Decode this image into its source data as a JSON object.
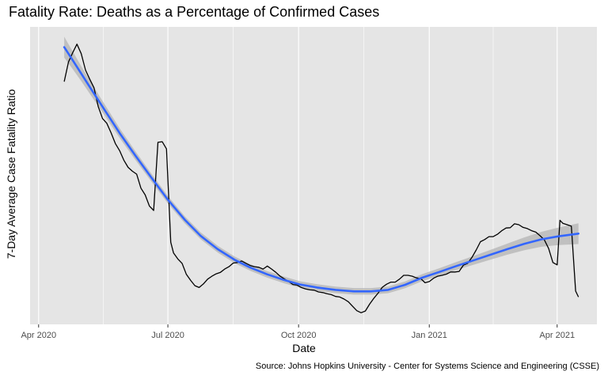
{
  "chart_data": {
    "type": "line",
    "title": "Fatality Rate:  Deaths as a Percentage of Confirmed Cases",
    "xlabel": "Date",
    "ylabel": "7-Day Average Case Fatality Ratio",
    "caption": "Source:  Johns Hopkins University - Center for Systems Science and Engineering (CSSE)",
    "x_ticks": [
      "Apr 2020",
      "Jul 2020",
      "Oct 2020",
      "Jan 2021",
      "Apr 2021"
    ],
    "x_tick_dates": [
      "2020-04-01",
      "2020-07-01",
      "2020-10-01",
      "2021-01-01",
      "2021-04-01"
    ],
    "xlim": [
      "2020-03-26",
      "2021-04-29"
    ],
    "ylim": [
      0,
      100
    ],
    "y_ticks_shown": false,
    "grid": true,
    "legend": "none",
    "colors": {
      "raw_line": "#000000",
      "smooth_line": "#3366ff",
      "confidence_band": "#b3b3b3",
      "panel_background": "#e5e5e5",
      "grid": "#ffffff"
    },
    "series": [
      {
        "style": "raw",
        "x": [
          "2020-04-19",
          "2020-04-22",
          "2020-04-25",
          "2020-04-28",
          "2020-05-01",
          "2020-05-04",
          "2020-05-07",
          "2020-05-10",
          "2020-05-13",
          "2020-05-16",
          "2020-05-19",
          "2020-05-22",
          "2020-05-25",
          "2020-05-28",
          "2020-05-31",
          "2020-06-03",
          "2020-06-06",
          "2020-06-09",
          "2020-06-12",
          "2020-06-15",
          "2020-06-18",
          "2020-06-21",
          "2020-06-24",
          "2020-06-27",
          "2020-06-30",
          "2020-07-03",
          "2020-07-05",
          "2020-07-08",
          "2020-07-11",
          "2020-07-14",
          "2020-07-17",
          "2020-07-20",
          "2020-07-23",
          "2020-07-26",
          "2020-07-29",
          "2020-08-01",
          "2020-08-04",
          "2020-08-07",
          "2020-08-10",
          "2020-08-13",
          "2020-08-16",
          "2020-08-19",
          "2020-08-22",
          "2020-08-25",
          "2020-08-28",
          "2020-08-31",
          "2020-09-03",
          "2020-09-06",
          "2020-09-09",
          "2020-09-12",
          "2020-09-15",
          "2020-09-18",
          "2020-09-21",
          "2020-09-24",
          "2020-09-27",
          "2020-09-30",
          "2020-10-03",
          "2020-10-06",
          "2020-10-09",
          "2020-10-12",
          "2020-10-15",
          "2020-10-18",
          "2020-10-21",
          "2020-10-24",
          "2020-10-27",
          "2020-10-30",
          "2020-11-02",
          "2020-11-05",
          "2020-11-08",
          "2020-11-11",
          "2020-11-14",
          "2020-11-17",
          "2020-11-20",
          "2020-11-23",
          "2020-11-26",
          "2020-11-29",
          "2020-12-02",
          "2020-12-05",
          "2020-12-08",
          "2020-12-11",
          "2020-12-14",
          "2020-12-17",
          "2020-12-20",
          "2020-12-23",
          "2020-12-26",
          "2020-12-29",
          "2021-01-01",
          "2021-01-04",
          "2021-01-07",
          "2021-01-10",
          "2021-01-13",
          "2021-01-16",
          "2021-01-19",
          "2021-01-22",
          "2021-01-25",
          "2021-01-28",
          "2021-01-31",
          "2021-02-03",
          "2021-02-06",
          "2021-02-09",
          "2021-02-12",
          "2021-02-15",
          "2021-02-18",
          "2021-02-21",
          "2021-02-24",
          "2021-02-27",
          "2021-03-02",
          "2021-03-05",
          "2021-03-08",
          "2021-03-11",
          "2021-03-14",
          "2021-03-17",
          "2021-03-20",
          "2021-03-23",
          "2021-03-26",
          "2021-03-29",
          "2021-04-01",
          "2021-04-03",
          "2021-04-05",
          "2021-04-08",
          "2021-04-11",
          "2021-04-14",
          "2021-04-16"
        ],
        "y": [
          81.6,
          88.2,
          91.3,
          94.2,
          91.0,
          85.5,
          82.4,
          79.5,
          73.2,
          69.2,
          67.6,
          64.4,
          60.8,
          58.4,
          55.2,
          52.8,
          51.5,
          50.5,
          45.8,
          43.5,
          39.8,
          38.3,
          61.2,
          61.4,
          59.0,
          27.6,
          24.0,
          22.0,
          20.5,
          16.8,
          14.8,
          13.0,
          12.4,
          13.6,
          15.2,
          16.2,
          17.0,
          17.5,
          18.6,
          19.4,
          20.6,
          20.8,
          21.3,
          20.5,
          19.8,
          19.4,
          19.2,
          18.6,
          19.6,
          18.6,
          17.5,
          16.2,
          15.3,
          14.4,
          13.4,
          13.2,
          12.4,
          11.9,
          11.6,
          11.5,
          10.9,
          10.7,
          10.3,
          10.0,
          9.4,
          9.2,
          8.5,
          7.6,
          6.1,
          4.6,
          3.9,
          4.5,
          6.8,
          8.8,
          10.5,
          12.5,
          13.5,
          14.2,
          14.2,
          15.2,
          16.5,
          16.5,
          16.2,
          15.6,
          15.4,
          14.0,
          14.4,
          15.5,
          16.2,
          16.5,
          16.9,
          17.6,
          17.6,
          17.8,
          19.9,
          20.5,
          22.5,
          25.0,
          27.8,
          28.5,
          29.5,
          29.5,
          30.3,
          31.5,
          32.4,
          32.5,
          33.8,
          33.5,
          32.6,
          32.2,
          31.5,
          31.0,
          29.8,
          28.4,
          25.5,
          20.8,
          20.0,
          35.0,
          34.0,
          33.5,
          33.0,
          11.2,
          9.2
        ]
      },
      {
        "style": "smooth",
        "x": [
          "2020-04-19",
          "2020-04-25",
          "2020-05-01",
          "2020-05-09",
          "2020-05-18",
          "2020-05-28",
          "2020-06-08",
          "2020-06-19",
          "2020-07-01",
          "2020-07-13",
          "2020-07-24",
          "2020-08-05",
          "2020-08-17",
          "2020-08-28",
          "2020-09-09",
          "2020-09-21",
          "2020-10-02",
          "2020-10-14",
          "2020-10-27",
          "2020-11-09",
          "2020-11-21",
          "2020-12-03",
          "2020-12-15",
          "2020-12-27",
          "2021-01-08",
          "2021-01-20",
          "2021-02-01",
          "2021-02-13",
          "2021-02-25",
          "2021-03-09",
          "2021-03-21",
          "2021-04-02",
          "2021-04-16"
        ],
        "y": [
          93.2,
          88.8,
          84.3,
          78.3,
          71.7,
          64.3,
          56.8,
          49.6,
          41.9,
          35.1,
          29.8,
          25.3,
          21.7,
          19.1,
          16.8,
          14.9,
          13.4,
          12.4,
          11.6,
          11.1,
          11.1,
          11.6,
          13.3,
          15.7,
          17.6,
          19.6,
          21.5,
          23.4,
          25.3,
          27.1,
          28.6,
          29.6,
          30.5
        ]
      }
    ]
  }
}
